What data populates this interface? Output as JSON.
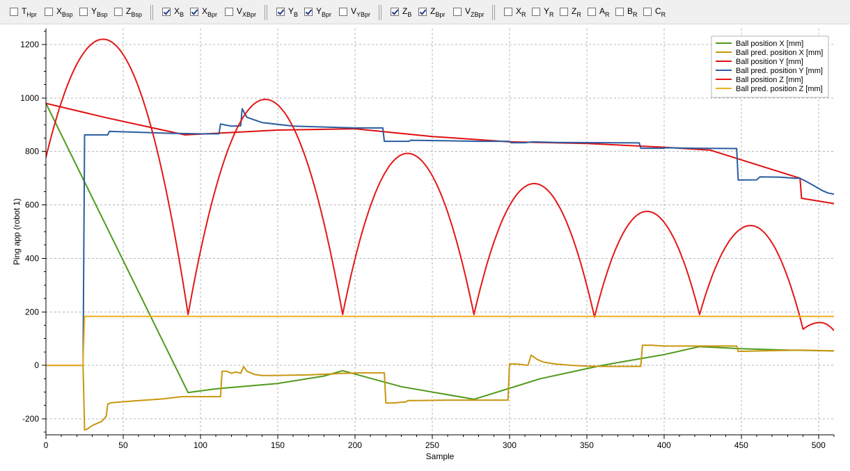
{
  "toolbar": {
    "groups": [
      [
        {
          "name": "T",
          "sub": "Hpr",
          "checked": false
        },
        {
          "name": "X",
          "sub": "Bsp",
          "checked": false
        },
        {
          "name": "Y",
          "sub": "Bsp",
          "checked": false
        },
        {
          "name": "Z",
          "sub": "Bsp",
          "checked": false
        }
      ],
      [
        {
          "name": "X",
          "sub": "B",
          "checked": true
        },
        {
          "name": "X",
          "sub": "Bpr",
          "checked": true
        },
        {
          "name": "V",
          "sub": "XBpr",
          "checked": false
        }
      ],
      [
        {
          "name": "Y",
          "sub": "B",
          "checked": true
        },
        {
          "name": "Y",
          "sub": "Bpr",
          "checked": true
        },
        {
          "name": "V",
          "sub": "YBpr",
          "checked": false
        }
      ],
      [
        {
          "name": "Z",
          "sub": "B",
          "checked": true
        },
        {
          "name": "Z",
          "sub": "Bpr",
          "checked": true
        },
        {
          "name": "V",
          "sub": "ZBpr",
          "checked": false
        }
      ],
      [
        {
          "name": "X",
          "sub": "R",
          "checked": false
        },
        {
          "name": "Y",
          "sub": "R",
          "checked": false
        },
        {
          "name": "Z",
          "sub": "R",
          "checked": false
        },
        {
          "name": "A",
          "sub": "R",
          "checked": false
        },
        {
          "name": "B",
          "sub": "R",
          "checked": false
        },
        {
          "name": "C",
          "sub": "R",
          "checked": false
        }
      ]
    ]
  },
  "chart_data": {
    "type": "line",
    "title": "",
    "xlabel": "Sample",
    "ylabel": "Ping app (robot 1)",
    "xlim": [
      0,
      510
    ],
    "ylim": [
      -260,
      1260
    ],
    "xticks": [
      0,
      50,
      100,
      150,
      200,
      250,
      300,
      350,
      400,
      450,
      500
    ],
    "yticks": [
      -200,
      0,
      200,
      400,
      600,
      800,
      1000,
      1200
    ],
    "grid": true,
    "legend_position": "top-right",
    "series": [
      {
        "name": "Ball position X [mm]",
        "color": "#4f9a19",
        "points": [
          [
            0,
            980
          ],
          [
            92,
            -102
          ],
          [
            110,
            -88
          ],
          [
            150,
            -68
          ],
          [
            180,
            -40
          ],
          [
            192,
            -20
          ],
          [
            230,
            -80
          ],
          [
            277,
            -127
          ],
          [
            320,
            -50
          ],
          [
            360,
            0
          ],
          [
            400,
            40
          ],
          [
            423,
            70
          ],
          [
            450,
            62
          ],
          [
            480,
            57
          ],
          [
            510,
            54
          ]
        ]
      },
      {
        "name": "Ball pred. position X [mm]",
        "color": "#c8960f",
        "points": [
          [
            0,
            0
          ],
          [
            24,
            0
          ],
          [
            25,
            -242
          ],
          [
            27,
            -238
          ],
          [
            30,
            -225
          ],
          [
            36,
            -210
          ],
          [
            39,
            -190
          ],
          [
            40,
            -145
          ],
          [
            42,
            -140
          ],
          [
            60,
            -132
          ],
          [
            75,
            -126
          ],
          [
            88,
            -117
          ],
          [
            113,
            -117
          ],
          [
            114,
            -22
          ],
          [
            117,
            -22
          ],
          [
            120,
            -30
          ],
          [
            123,
            -25
          ],
          [
            126,
            -30
          ],
          [
            128,
            -5
          ],
          [
            130,
            -22
          ],
          [
            135,
            -34
          ],
          [
            140,
            -38
          ],
          [
            145,
            -38
          ],
          [
            170,
            -36
          ],
          [
            185,
            -32
          ],
          [
            192,
            -30
          ],
          [
            205,
            -28
          ],
          [
            219,
            -28
          ],
          [
            220,
            -141
          ],
          [
            225,
            -141
          ],
          [
            230,
            -138
          ],
          [
            233,
            -137
          ],
          [
            234,
            -132
          ],
          [
            240,
            -132
          ],
          [
            260,
            -130
          ],
          [
            280,
            -130
          ],
          [
            299,
            -130
          ],
          [
            300,
            5
          ],
          [
            305,
            5
          ],
          [
            312,
            0
          ],
          [
            314,
            38
          ],
          [
            318,
            22
          ],
          [
            322,
            12
          ],
          [
            330,
            5
          ],
          [
            340,
            0
          ],
          [
            350,
            -3
          ],
          [
            360,
            -4
          ],
          [
            385,
            -4
          ],
          [
            386,
            75
          ],
          [
            392,
            75
          ],
          [
            400,
            72
          ],
          [
            430,
            72
          ],
          [
            447,
            72
          ],
          [
            448,
            52
          ],
          [
            455,
            53
          ],
          [
            470,
            55
          ],
          [
            490,
            57
          ],
          [
            510,
            54
          ]
        ]
      },
      {
        "name": "Ball position Y [mm]",
        "color": "#e00f0f",
        "points": [
          [
            0,
            980
          ],
          [
            40,
            925
          ],
          [
            90,
            862
          ],
          [
            150,
            880
          ],
          [
            200,
            885
          ],
          [
            250,
            856
          ],
          [
            300,
            836
          ],
          [
            350,
            830
          ],
          [
            400,
            816
          ],
          [
            430,
            805
          ],
          [
            488,
            700
          ],
          [
            489,
            625
          ],
          [
            510,
            605
          ]
        ]
      },
      {
        "name": "Ball pred. position Y [mm]",
        "color": "#2a5ca0",
        "points": [
          [
            0,
            0
          ],
          [
            24,
            0
          ],
          [
            25,
            862
          ],
          [
            30,
            862
          ],
          [
            40,
            862
          ],
          [
            41,
            875
          ],
          [
            60,
            872
          ],
          [
            80,
            868
          ],
          [
            100,
            866
          ],
          [
            112,
            866
          ],
          [
            113,
            903
          ],
          [
            117,
            898
          ],
          [
            120,
            895
          ],
          [
            126,
            896
          ],
          [
            127,
            960
          ],
          [
            130,
            928
          ],
          [
            140,
            908
          ],
          [
            160,
            895
          ],
          [
            200,
            888
          ],
          [
            218,
            888
          ],
          [
            219,
            838
          ],
          [
            225,
            838
          ],
          [
            235,
            838
          ],
          [
            236,
            842
          ],
          [
            260,
            840
          ],
          [
            280,
            838
          ],
          [
            300,
            838
          ],
          [
            301,
            833
          ],
          [
            310,
            833
          ],
          [
            315,
            836
          ],
          [
            330,
            834
          ],
          [
            384,
            832
          ],
          [
            385,
            812
          ],
          [
            395,
            812
          ],
          [
            400,
            812
          ],
          [
            401,
            814
          ],
          [
            420,
            812
          ],
          [
            447,
            811
          ],
          [
            448,
            693
          ],
          [
            460,
            694
          ],
          [
            462,
            705
          ],
          [
            475,
            704
          ],
          [
            485,
            700
          ],
          [
            488,
            700
          ],
          [
            492,
            688
          ],
          [
            497,
            672
          ],
          [
            502,
            655
          ],
          [
            506,
            645
          ],
          [
            510,
            640
          ]
        ]
      },
      {
        "name": "Ball position Z [mm]",
        "color": "#e41717",
        "arcs": [
          [
            0,
            92,
            37,
            1220,
            778,
            190
          ],
          [
            92,
            192,
            142,
            995,
            190,
            190
          ],
          [
            192,
            277,
            234,
            793,
            190,
            190
          ],
          [
            277,
            355,
            316,
            680,
            190,
            180
          ],
          [
            355,
            423,
            389,
            576,
            180,
            190
          ],
          [
            423,
            490,
            456,
            523,
            190,
            135
          ],
          [
            490,
            510,
            501,
            160,
            135,
            130
          ]
        ]
      },
      {
        "name": "Ball pred. position Z [mm]",
        "color": "#f0ae1e",
        "points": [
          [
            0,
            0
          ],
          [
            24,
            0
          ],
          [
            25,
            183
          ],
          [
            510,
            183
          ]
        ]
      }
    ]
  }
}
